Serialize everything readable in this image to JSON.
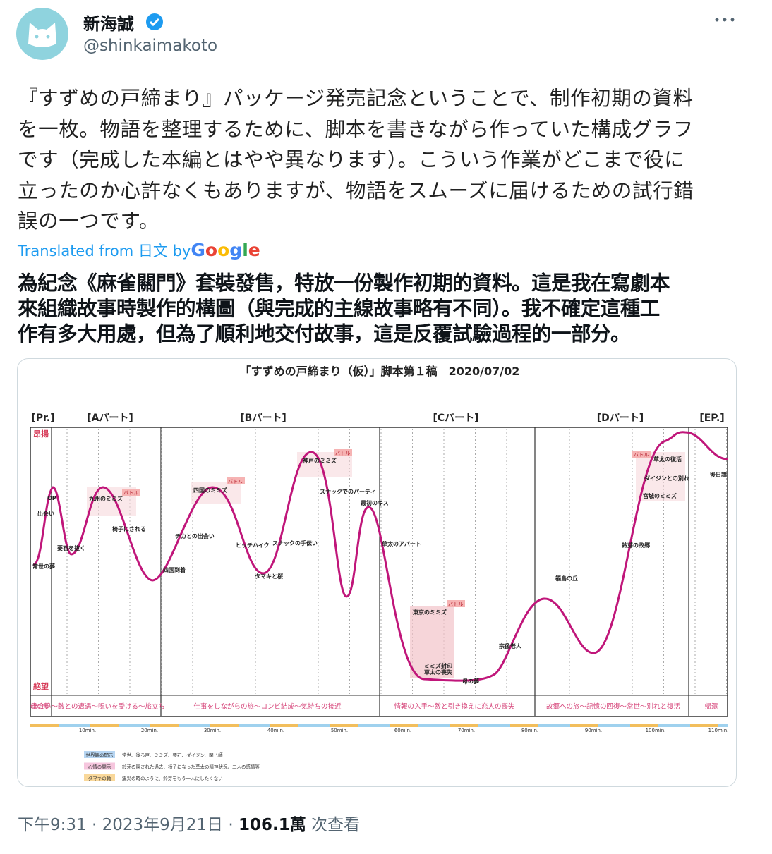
{
  "tweet": {
    "author": {
      "name": "新海誠",
      "handle": "@shinkaimakoto"
    },
    "text_lines": [
      "『すずめの戸締まり』パッケージ発売記念ということで、制作初期の資料",
      "を一枚。物語を整理するために、脚本を書きながら作っていた構成グラフ",
      "です（完成した本編とはやや異なります）。こういう作業がどこまで役に",
      "立ったのか心許なくもありますが、物語をスムーズに届けるための試行錯",
      "誤の一つです。"
    ],
    "translation": {
      "prefix": "Translated from",
      "lang": "日文",
      "by": "by",
      "brand": [
        "G",
        "o",
        "o",
        "g",
        "l",
        "e"
      ]
    },
    "translated_lines": [
      "為紀念《麻雀關門》套裝發售，特放一份製作初期的資料。這是我在寫劇本",
      "來組織故事時製作的構圖（與完成的主線故事略有不同）。我不確定這種工",
      "作有多大用處，但為了順利地交付故事，這是反覆試驗過程的一部分。"
    ],
    "footer": {
      "time": "下午9:31",
      "sep": "·",
      "date": "2023年9月21日",
      "views": "106.1萬",
      "views_label": "次查看"
    }
  },
  "image": {
    "title": "「すずめの戸締まり（仮）」脚本第１稿　2020/07/02",
    "sections": [
      "[Pr.]",
      "[Aパート]",
      "[Bパート]",
      "[Cパート]",
      "[Dパート]",
      "[EP.]"
    ],
    "y_top": "昂揚",
    "y_bottom": "絶望",
    "bands": [
      "母の夢",
      "出会い〜敵との遭遇〜呪いを受ける〜旅立ち",
      "仕事をしながらの旅〜コンビ結成〜気持ちの接近",
      "情報の入手〜敵と引き換えに恋人の喪失",
      "故郷への旅〜記憶の回復〜常世〜別れと復活",
      "帰還"
    ],
    "ticks": [
      "10min.",
      "20min.",
      "30min.",
      "40min.",
      "50min.",
      "60min.",
      "70min.",
      "80min.",
      "90min.",
      "100min.",
      "110min."
    ],
    "legend": [
      {
        "tag": "世界観の開示",
        "text": "常世、後ろ戸、ミミズ、要石、ダイジン、閉じ師"
      },
      {
        "tag": "心情の開示",
        "text": "鈴芽の隠された過去、椅子になった草太の精神状況、二人の感情等"
      },
      {
        "tag": "タマキの軸",
        "text": "震災の時のように、鈴芽をもう一人にしたくない"
      }
    ],
    "labels": [
      "OP",
      "出会い",
      "要石を抜く",
      "九州のミミズ",
      "椅子にされる",
      "四国到着",
      "四国のミミズ",
      "チカとの出会い",
      "ヒッチハイク",
      "タマキと桜",
      "スナックの手伝い",
      "神戸のミミズ",
      "スナックでのパーティ",
      "最初のキス",
      "草太のアパート",
      "東京のミミズ",
      "ミミズ封印",
      "草太の喪失",
      "母の夢",
      "宗像老人",
      "福島の丘",
      "鈴芽の故郷",
      "ダイジンとの別れ",
      "宮城のミミズ",
      "草太の復活",
      "後日譚",
      "常世の夢"
    ],
    "battle": "バトル"
  }
}
